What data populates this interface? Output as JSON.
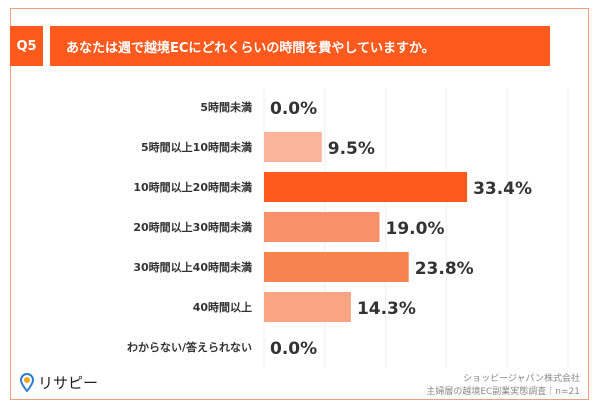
{
  "header": {
    "q_label": "Q5",
    "question": "あなたは週で越境ECにどれくらいの時間を費やしていますか。"
  },
  "chart_data": {
    "type": "bar",
    "orientation": "horizontal",
    "categories": [
      "5時間未満",
      "5時間以上10時間未満",
      "10時間以上20時間未満",
      "20時間以上30時間未満",
      "30時間以上40時間未満",
      "40時間以上",
      "わからない/答えられない"
    ],
    "values": [
      0.0,
      9.5,
      33.4,
      19.0,
      23.8,
      14.3,
      0.0
    ],
    "value_format": "%",
    "xlim": [
      0,
      50
    ],
    "grid": true,
    "colors": [
      "#fbb39b",
      "#fbb39b",
      "#ff5a1e",
      "#f8916a",
      "#f7844f",
      "#f9a584",
      "#fbb39b"
    ]
  },
  "footer": {
    "logo": "リサピー",
    "company": "ショッピージャパン株式会社",
    "survey": "主婦層の越境EC副業実態調査｜n=21"
  }
}
